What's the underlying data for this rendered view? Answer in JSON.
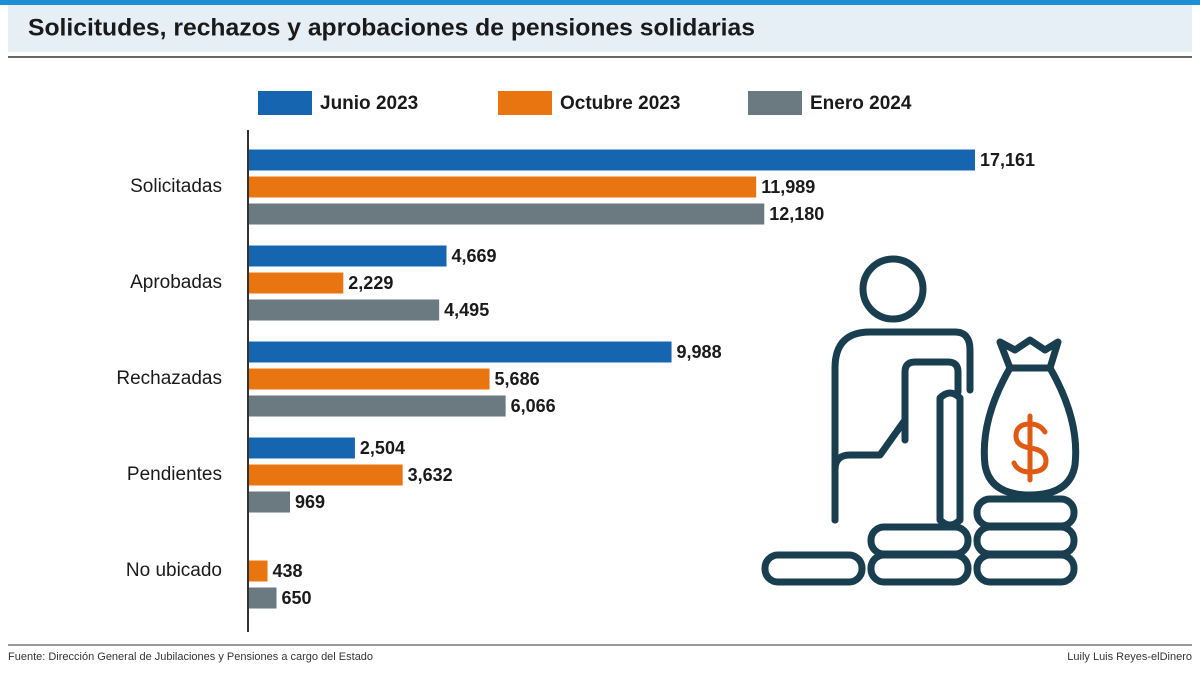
{
  "chart_data": {
    "type": "hbar",
    "title": "Solicitudes, rechazos y aprobaciones de pensiones solidarias",
    "categories": [
      "Solicitadas",
      "Aprobadas",
      "Rechazadas",
      "Pendientes",
      "No ubicado"
    ],
    "series": [
      {
        "name": "Junio 2023",
        "color": "#1565b0",
        "values": [
          17161,
          4669,
          9988,
          2504,
          null
        ],
        "value_labels": [
          "17,161",
          "4,669",
          "9,988",
          "2,504",
          null
        ]
      },
      {
        "name": "Octubre 2023",
        "color": "#e8750f",
        "values": [
          11989,
          2229,
          5686,
          3632,
          438
        ],
        "value_labels": [
          "11,989",
          "2,229",
          "5,686",
          "3,632",
          "438"
        ]
      },
      {
        "name": "Enero 2024",
        "color": "#6b7a80",
        "values": [
          12180,
          4495,
          6066,
          969,
          650
        ],
        "value_labels": [
          "12,180",
          "4,495",
          "6,066",
          "969",
          "650"
        ]
      }
    ],
    "source": "Fuente: Dirección General de Jubilaciones y Pensiones a cargo del Estado",
    "credit": "Luily Luis Reyes-elDinero"
  }
}
